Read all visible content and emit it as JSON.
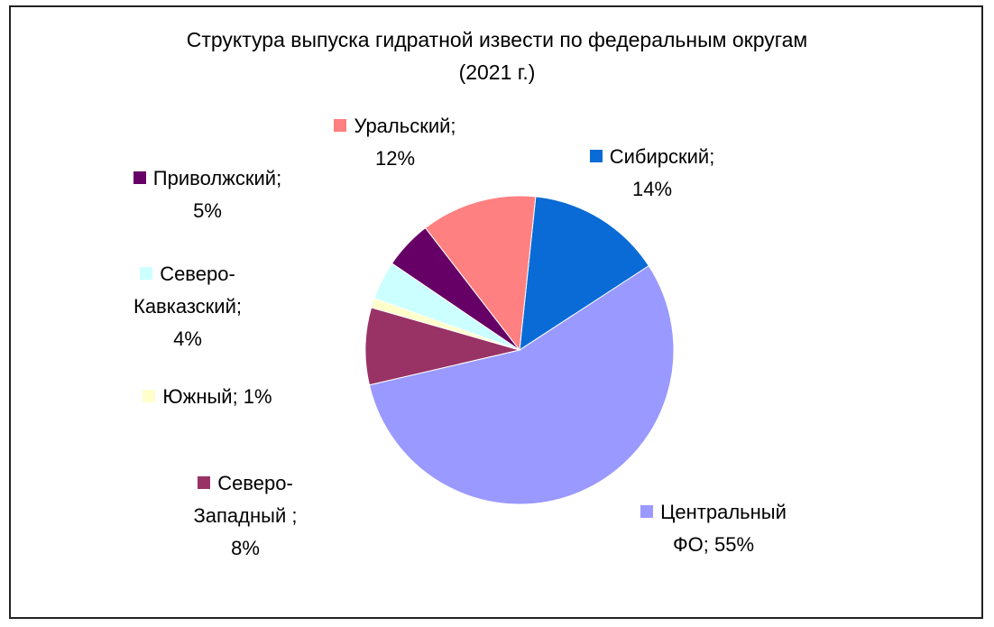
{
  "chart_data": {
    "type": "pie",
    "title": "Структура выпуска гидратной извести по федеральным округам",
    "subtitle": "(2021 г.)",
    "start_angle_deg": 6,
    "direction": "clockwise",
    "slices": [
      {
        "name": "Сибирский",
        "value": 14,
        "label_line1": "Сибирский;",
        "label_line2": "14%",
        "color": "#0a6bd6"
      },
      {
        "name": "Центральный ФО",
        "value": 55,
        "label_line1": "Центральный",
        "label_line2": "ФО; 55%",
        "color": "#9999ff"
      },
      {
        "name": "Северо-Западный",
        "value": 8,
        "label_line1": "Северо-",
        "label_line2": "Западный ;",
        "label_line3": "8%",
        "color": "#993366"
      },
      {
        "name": "Южный",
        "value": 1,
        "label_line1": "Южный; 1%",
        "color": "#ffffcc"
      },
      {
        "name": "Северо-Кавказский",
        "value": 4,
        "label_line1": "Северо-",
        "label_line2": "Кавказский;",
        "label_line3": "4%",
        "color": "#ccffff"
      },
      {
        "name": "Приволжский",
        "value": 5,
        "label_line1": "Приволжский;",
        "label_line2": "5%",
        "color": "#660066"
      },
      {
        "name": "Уральский",
        "value": 12,
        "label_line1": "Уральский;",
        "label_line2": "12%",
        "color": "#ff8080"
      }
    ]
  }
}
